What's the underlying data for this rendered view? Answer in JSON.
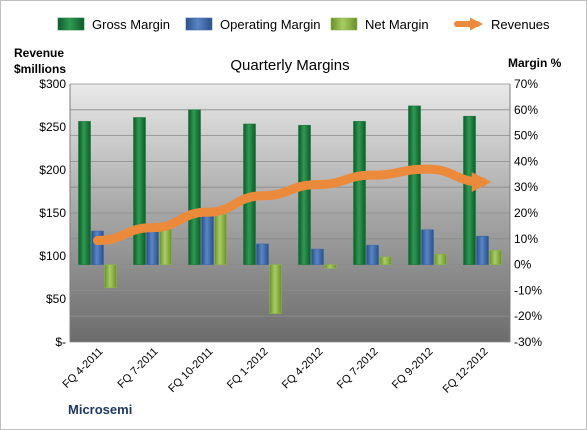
{
  "chart_data": {
    "type": "bar",
    "title": "Quarterly Margins",
    "source_label": "Microsemi",
    "categories": [
      "FQ 4-2011",
      "FQ 7-2011",
      "FQ 10-2011",
      "FQ 1-2012",
      "FQ 4-2012",
      "FQ 7-2012",
      "FQ 9-2012",
      "FQ 12-2012"
    ],
    "left_axis": {
      "title_line1": "Revenue",
      "title_line2": "$millions",
      "min": 0,
      "max": 300,
      "step": 50,
      "tick_labels": [
        "$-",
        "$50",
        "$100",
        "$150",
        "$200",
        "$250",
        "$300"
      ]
    },
    "right_axis": {
      "title": "Margin %",
      "min": -30,
      "max": 70,
      "step": 10,
      "tick_labels": [
        "-30%",
        "-20%",
        "-10%",
        "0%",
        "10%",
        "20%",
        "30%",
        "40%",
        "50%",
        "60%",
        "70%"
      ]
    },
    "series": [
      {
        "name": "Gross Margin",
        "kind": "bar",
        "axis": "right",
        "color": "#1e7a3c",
        "values": [
          55.5,
          57,
          60,
          54.5,
          54,
          55.5,
          61.5,
          57.5
        ]
      },
      {
        "name": "Operating Margin",
        "kind": "bar",
        "axis": "right",
        "color": "#3f68a8",
        "values": [
          13,
          15,
          19,
          8,
          6,
          7.5,
          13.5,
          11
        ]
      },
      {
        "name": "Net Margin",
        "kind": "bar",
        "axis": "right",
        "color": "#8db34a",
        "values": [
          -9,
          15,
          19.5,
          -19,
          -1.5,
          3,
          4,
          5.5
        ]
      },
      {
        "name": "Revenues",
        "kind": "line",
        "axis": "left",
        "color": "#ec8a3c",
        "values": [
          118,
          133,
          151,
          170,
          183,
          194,
          201,
          186
        ]
      }
    ],
    "grid": true,
    "legend_position": "top"
  }
}
